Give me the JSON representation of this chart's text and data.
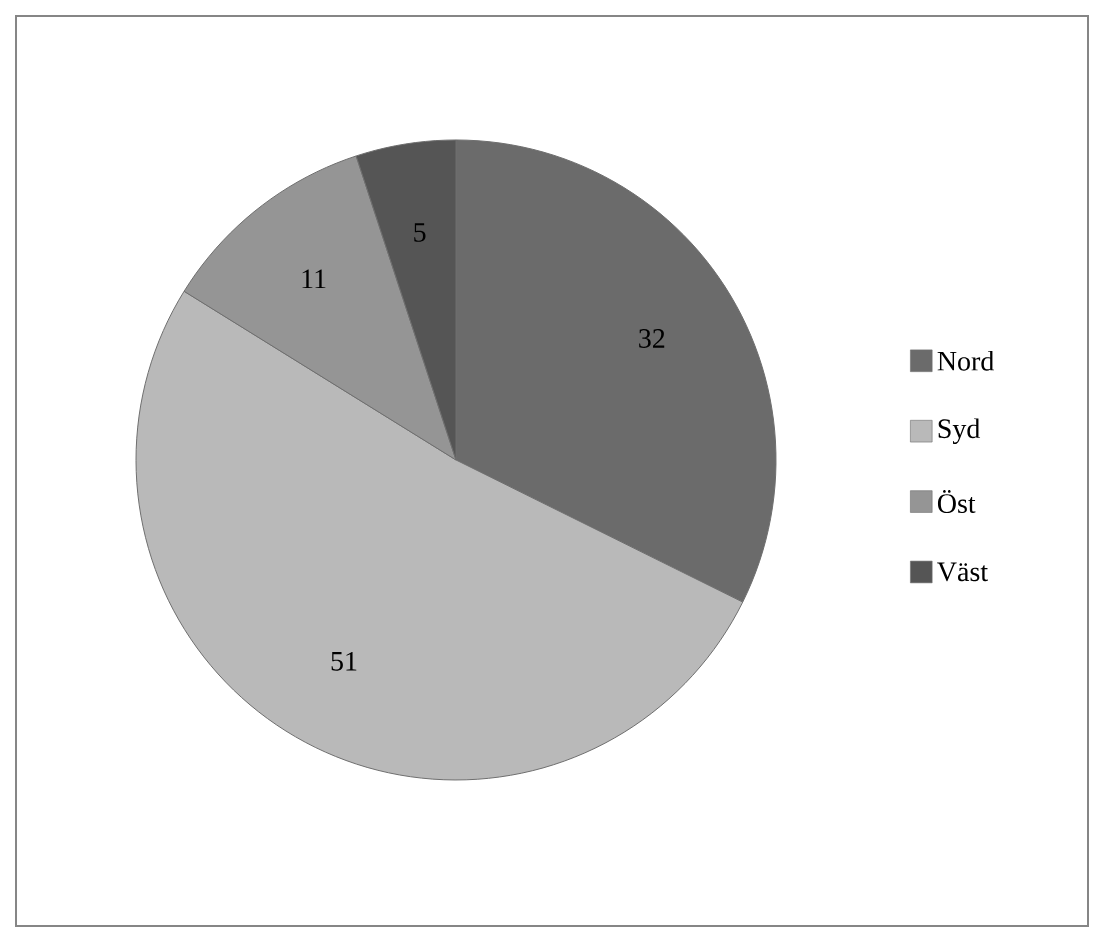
{
  "chart_data": {
    "type": "pie",
    "categories": [
      "Nord",
      "Syd",
      "Öst",
      "Väst"
    ],
    "values": [
      32,
      51,
      11,
      5
    ],
    "colors": [
      "#6b6b6b",
      "#b9b9b9",
      "#959595",
      "#555555"
    ],
    "data_labels": true,
    "legend": "right"
  }
}
